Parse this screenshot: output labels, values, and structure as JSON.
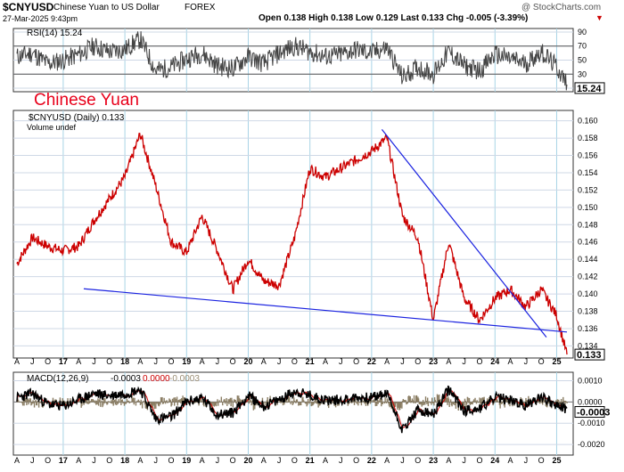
{
  "header": {
    "symbol": "$CNYUSD",
    "name": "Chinese Yuan to US Dollar",
    "exchange": "FOREX",
    "watermark": "@ StockCharts.com",
    "date": "27-Mar-2025 9:43pm",
    "ohlc": "Open 0.138   High 0.138   Low 0.129   Last 0.133   Chg -0.005 (-3.39%)",
    "chg_marker": "▼"
  },
  "rsi_panel": {
    "label": "RSI(14) 15.24",
    "last_value": "15.24",
    "ticks": [
      "90",
      "70",
      "50",
      "30",
      "10"
    ],
    "overbought": 70,
    "oversold": 30
  },
  "price_panel": {
    "annotation": "Chinese Yuan",
    "annotation_color": "#e8001a",
    "label": "$CNYUSD (Daily) 0.133",
    "volume_label": "Volume undef",
    "last_value": "0.133",
    "ticks": [
      "0.160",
      "0.158",
      "0.156",
      "0.154",
      "0.152",
      "0.150",
      "0.148",
      "0.146",
      "0.144",
      "0.142",
      "0.140",
      "0.138",
      "0.136",
      "0.134"
    ]
  },
  "macd_panel": {
    "label_prefix": "MACD(12,26,9)",
    "macd": "-0.0003",
    "signal": "0.0000",
    "hist": "-0.0003",
    "last_value": "-0.0003",
    "ticks": [
      "0.0010",
      "0.0000",
      "-0.0010",
      "-0.0020"
    ]
  },
  "x_axis": {
    "year_labels": [
      "17",
      "18",
      "19",
      "20",
      "21",
      "22",
      "23",
      "24",
      "25"
    ],
    "month_pattern": [
      "A",
      "J",
      "O"
    ],
    "lead_labels": [
      "A",
      "J",
      "O"
    ]
  },
  "colors": {
    "price": "#cc0000",
    "price_dark": "#000000",
    "trendline": "#1a22e0",
    "rsi": "#444444",
    "macd": "#000000",
    "signal": "#cc0000",
    "hist": "#8a7d63",
    "grid": "#cfd8e6",
    "vgrid": "#a8d4e6",
    "bg": "#ffffff"
  },
  "chart_data": {
    "type": "line",
    "title": "$CNYUSD Chinese Yuan to US Dollar FOREX",
    "x": [
      "2016-04",
      "2016-07",
      "2016-10",
      "2017-01",
      "2017-04",
      "2017-07",
      "2017-10",
      "2018-01",
      "2018-04",
      "2018-07",
      "2018-10",
      "2019-01",
      "2019-04",
      "2019-07",
      "2019-10",
      "2020-01",
      "2020-04",
      "2020-07",
      "2020-10",
      "2021-01",
      "2021-04",
      "2021-07",
      "2021-10",
      "2022-01",
      "2022-04",
      "2022-07",
      "2022-10",
      "2023-01",
      "2023-04",
      "2023-07",
      "2023-10",
      "2024-01",
      "2024-04",
      "2024-07",
      "2024-10",
      "2025-01",
      "2025-03"
    ],
    "series": [
      {
        "values": [
          0.1435,
          0.1465,
          0.1455,
          0.145,
          0.1455,
          0.1485,
          0.151,
          0.1535,
          0.1585,
          0.1525,
          0.146,
          0.1448,
          0.149,
          0.145,
          0.1405,
          0.144,
          0.1415,
          0.141,
          0.1465,
          0.1545,
          0.1535,
          0.1545,
          0.1555,
          0.1565,
          0.158,
          0.149,
          0.1465,
          0.137,
          0.146,
          0.1395,
          0.137,
          0.1395,
          0.1405,
          0.1385,
          0.1405,
          0.1375,
          0.133
        ]
      },
      {
        "name": "RSI(14)",
        "values": [
          55,
          60,
          45,
          50,
          58,
          70,
          62,
          65,
          80,
          35,
          40,
          52,
          60,
          42,
          38,
          55,
          45,
          60,
          70,
          62,
          55,
          58,
          65,
          60,
          68,
          25,
          40,
          30,
          62,
          42,
          35,
          58,
          52,
          45,
          62,
          40,
          15.24
        ]
      },
      {
        "name": "MACD(12,26,9)",
        "values": [
          0.0002,
          0.0004,
          -0.0001,
          -0.0002,
          0.0001,
          0.0004,
          0.0003,
          0.0004,
          0.0006,
          -0.0008,
          -0.0007,
          0.0,
          0.0002,
          -0.0006,
          -0.0005,
          0.0003,
          -0.0002,
          0.0001,
          0.0005,
          0.0003,
          0.0001,
          0.0001,
          0.0002,
          0.0002,
          0.0004,
          -0.0013,
          -0.0004,
          -0.0006,
          0.0006,
          -0.0004,
          -0.0003,
          0.0002,
          0.0001,
          -0.0002,
          0.0003,
          -0.0002,
          -0.0003
        ]
      }
    ],
    "trendlines": [
      {
        "from": [
          "2017-05",
          0.1406
        ],
        "to": [
          "2025-03",
          0.1356
        ]
      },
      {
        "from": [
          "2022-03",
          0.159
        ],
        "to": [
          "2024-11",
          0.135
        ]
      }
    ],
    "ylim": [
      0.1326,
      0.1612
    ],
    "rsi_ylim": [
      5,
      95
    ],
    "macd_ylim": [
      -0.0025,
      0.0014
    ],
    "grid": true
  }
}
